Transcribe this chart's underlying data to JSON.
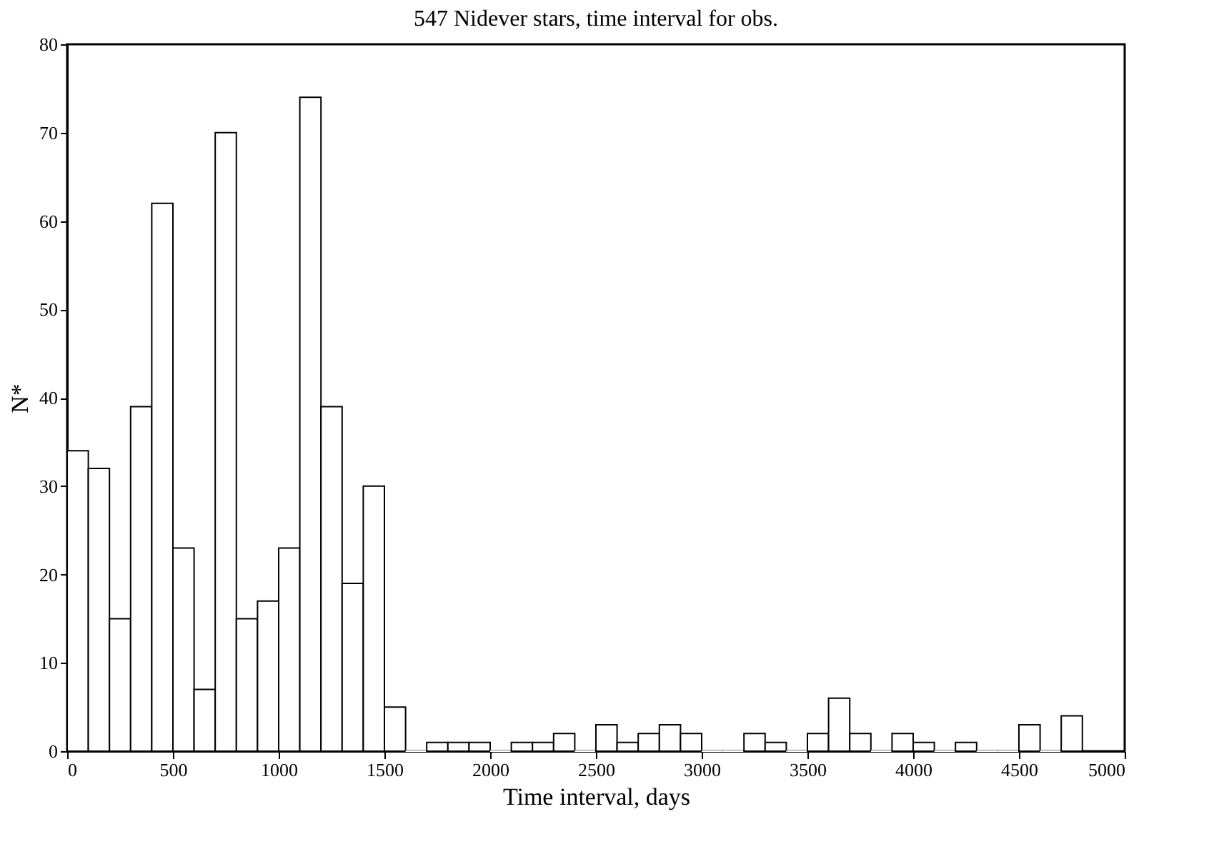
{
  "chart_data": {
    "type": "histogram",
    "title": "547 Nidever stars, time interval for obs.",
    "xlabel": "Time interval, days",
    "ylabel": "N*",
    "bins": [
      0,
      100,
      200,
      300,
      400,
      500,
      600,
      700,
      800,
      900,
      1000,
      1100,
      1200,
      1300,
      1400,
      1500,
      1600,
      1700,
      1800,
      1900,
      2000,
      2100,
      2200,
      2300,
      2400,
      2500,
      2600,
      2700,
      2800,
      2900,
      3000,
      3100,
      3200,
      3300,
      3400,
      3500,
      3600,
      3700,
      3800,
      3900,
      4000,
      4100,
      4200,
      4300,
      4400,
      4500,
      4600,
      4700,
      4800
    ],
    "values": [
      34,
      32,
      15,
      39,
      62,
      23,
      7,
      70,
      15,
      17,
      23,
      74,
      39,
      19,
      30,
      5,
      0,
      1,
      1,
      1,
      0,
      1,
      1,
      2,
      0,
      3,
      1,
      2,
      3,
      2,
      0,
      0,
      2,
      1,
      0,
      2,
      6,
      2,
      0,
      2,
      1,
      0,
      1,
      0,
      0,
      3,
      0,
      4
    ],
    "color": "#ffffff",
    "xlim": [
      0,
      5000
    ],
    "xticks": [
      0,
      500,
      1000,
      1500,
      2000,
      2500,
      3000,
      3500,
      4000,
      4500,
      5000
    ],
    "ylim": [
      0,
      80
    ],
    "yticks": [
      0,
      10,
      20,
      30,
      40,
      50,
      60,
      70,
      80
    ],
    "grid": false
  }
}
